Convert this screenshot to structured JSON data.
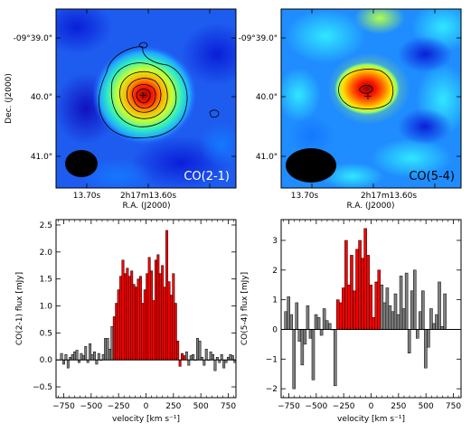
{
  "chart_data": [
    {
      "type": "heatmap",
      "panel": "top-left",
      "map_label": "CO(2-1)",
      "ylabel": "Dec. (J2000)",
      "xlabel": "R.A. (J2000)",
      "xticks": [
        "13.70s",
        "2h17m13.60s"
      ],
      "yticks": [
        "-09°39.0\"",
        "40.0\"",
        "41.0\""
      ],
      "peak_marker": "+",
      "beam": "ellipse, bottom-left",
      "contours": true
    },
    {
      "type": "heatmap",
      "panel": "top-right",
      "map_label": "CO(5-4)",
      "xlabel": "R.A. (J2000)",
      "xticks": [
        "13.70s",
        "2h17m13.60s"
      ],
      "yticks": [
        "-09°39.0\"",
        "40.0\"",
        "41.0\""
      ],
      "peak_marker": "+",
      "beam": "ellipse, bottom-left",
      "contours": true
    },
    {
      "type": "bar",
      "panel": "bottom-left",
      "style": "step histogram, red fill for -300 to 350 km/s, grey elsewhere",
      "xlabel": "velocity [km s⁻¹]",
      "ylabel": "CO(2-1) flux [mJy]",
      "xlim": [
        -820,
        820
      ],
      "ylim": [
        -0.7,
        2.6
      ],
      "xticks": [
        "−750",
        "−500",
        "−250",
        "0",
        "250",
        "500",
        "750"
      ],
      "yticks": [
        "−0.5",
        "0.0",
        "0.5",
        "1.0",
        "1.5",
        "2.0",
        "2.5"
      ],
      "bin_width": 20,
      "bin_start": -780,
      "values": [
        0.12,
        -0.08,
        0.1,
        -0.15,
        0.05,
        0.1,
        0.15,
        0.18,
        -0.05,
        0.12,
        0.08,
        0.25,
        -0.05,
        0.3,
        0.1,
        0.15,
        -0.08,
        0.12,
        0.0,
        0.1,
        0.4,
        0.4,
        0.2,
        0.62,
        0.8,
        1.05,
        1.3,
        1.55,
        1.85,
        1.6,
        1.7,
        1.55,
        1.65,
        1.4,
        1.35,
        1.5,
        1.55,
        1.05,
        1.3,
        1.6,
        1.9,
        1.65,
        1.1,
        1.85,
        1.95,
        1.6,
        1.75,
        1.35,
        2.4,
        1.45,
        1.2,
        1.6,
        1.05,
        0.35,
        -0.12,
        0.12,
        0.08,
        0.15,
        -0.1,
        0.08,
        0.1,
        0.0,
        0.4,
        0.35,
        0.05,
        -0.1,
        0.2,
        0.0,
        0.15,
        0.1,
        -0.2,
        0.05,
        -0.05,
        0.1,
        -0.15,
        -0.05,
        0.05,
        0.1,
        0.08,
        -0.05
      ],
      "highlight_range": [
        -300,
        350
      ]
    },
    {
      "type": "bar",
      "panel": "bottom-right",
      "style": "step histogram, red fill for -320 to 80 km/s, grey elsewhere",
      "xlabel": "velocity [km s⁻¹]",
      "ylabel": "CO(5-4) flux [mJy]",
      "xlim": [
        -820,
        820
      ],
      "ylim": [
        -2.3,
        3.7
      ],
      "xticks": [
        "−750",
        "−500",
        "−250",
        "0",
        "250",
        "500",
        "750"
      ],
      "yticks": [
        "−2",
        "−1",
        "0",
        "1",
        "2",
        "3"
      ],
      "bin_width": 25,
      "bin_start": -790,
      "values": [
        0.6,
        1.1,
        0.5,
        -2.0,
        0.9,
        -0.4,
        -1.2,
        -0.5,
        0.8,
        -0.3,
        -1.7,
        0.5,
        0.4,
        -0.2,
        0.7,
        0.3,
        0.2,
        0.0,
        -1.9,
        1.0,
        0.9,
        1.4,
        3.0,
        1.5,
        2.5,
        1.3,
        2.7,
        3.0,
        2.4,
        3.4,
        2.5,
        1.5,
        0.4,
        1.6,
        2.0,
        1.5,
        0.9,
        1.4,
        0.8,
        0.6,
        1.2,
        0.5,
        1.8,
        0.7,
        1.9,
        -0.8,
        1.3,
        2.0,
        -0.3,
        0.6,
        1.3,
        -1.3,
        -0.6,
        0.7,
        0.2,
        0.5,
        1.6,
        0.1,
        1.2
      ],
      "highlight_range": [
        -325,
        85
      ]
    }
  ]
}
